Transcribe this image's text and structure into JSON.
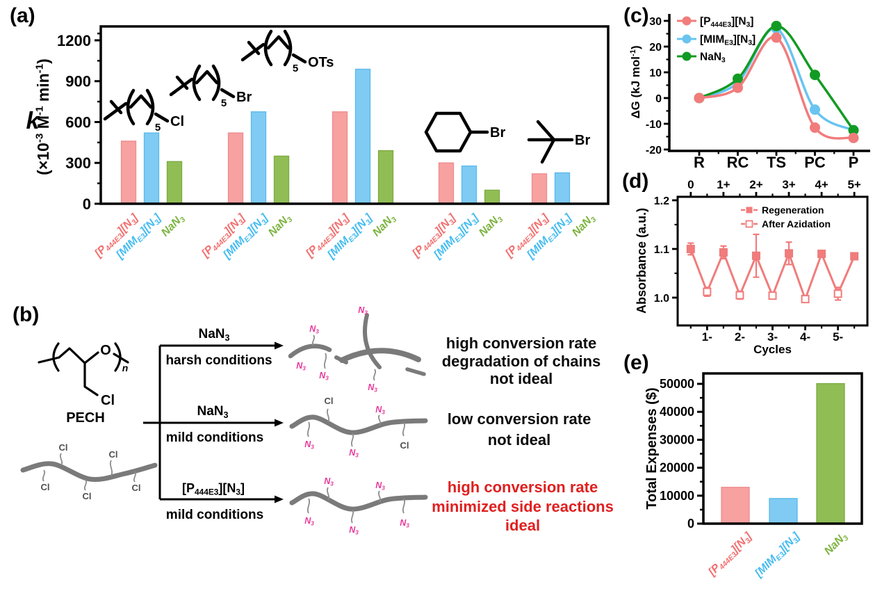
{
  "figure": {
    "panel_labels": {
      "a": "(a)",
      "b": "(b)",
      "c": "(c)",
      "d": "(d)",
      "e": "(e)"
    }
  },
  "colors": {
    "bar_fills": [
      "#F7A1A1",
      "#7FCBF3",
      "#90BE55"
    ],
    "bar_strokes": [
      "#EE8A8A",
      "#58B9EA",
      "#7CAB40"
    ],
    "label_colors": [
      "#F26F6F",
      "#45BCF0",
      "#7CB33F"
    ],
    "line_colors": [
      "#F17C7C",
      "#69C4F0",
      "#129B22"
    ],
    "magenta": "#E8399B",
    "red_text": "#E01F1F",
    "chain": "#7A7A7A",
    "gray_label": "#4F4F4F",
    "black": "#000000"
  },
  "chart_data": [
    {
      "id": "a",
      "type": "bar",
      "ylabel_main": "k",
      "ylabel_units": "(×10^-3^ M^-1^ min^-1^)",
      "yticks": [
        0,
        300,
        600,
        900,
        1200
      ],
      "yticks_minor": [
        150,
        450,
        750,
        1050,
        1250
      ],
      "ylim": [
        0,
        1302
      ],
      "categories": [
        "[P~444E3~][N~3~]",
        "[MIM~E3~][N~3~]",
        "NaN~3~"
      ],
      "ring_subscript": "5",
      "groups": [
        {
          "substrate": "1-chlorohexane",
          "structure": "hexyl",
          "substituent": "Cl",
          "values": [
            460,
            520,
            310
          ]
        },
        {
          "substrate": "1-bromohexane",
          "structure": "hexyl",
          "substituent": "Br",
          "values": [
            520,
            675,
            350
          ]
        },
        {
          "substrate": "hexyl-tosylate",
          "structure": "hexyl",
          "substituent": "OTs",
          "values": [
            675,
            988,
            390
          ]
        },
        {
          "substrate": "bromocyclohexane",
          "structure": "cyclohexyl",
          "substituent": "Br",
          "values": [
            300,
            277,
            100
          ]
        },
        {
          "substrate": "tert-butyl-bromide",
          "structure": "tbutyl",
          "substituent": "Br",
          "values": [
            220,
            227,
            null
          ]
        }
      ]
    },
    {
      "id": "c",
      "type": "line",
      "ylabel": "ΔG (kJ mol^-1^)",
      "categories": [
        "R",
        "RC",
        "TS",
        "PC",
        "P"
      ],
      "yticks": [
        -20,
        -10,
        0,
        10,
        20,
        30
      ],
      "yticks_minor": [
        -15,
        -5,
        5,
        15,
        25
      ],
      "ylim": [
        -20,
        33
      ],
      "series": [
        {
          "name": "[P~444E3~][N~3~]",
          "values": [
            0,
            4,
            23.5,
            -11.5,
            -15.5
          ]
        },
        {
          "name": "[MIM~E3~][N~3~]",
          "values": [
            0,
            6,
            27,
            -4.5,
            -12.5
          ]
        },
        {
          "name": "NaN~3~",
          "values": [
            0,
            7.5,
            28,
            9,
            -12.5
          ]
        }
      ],
      "legend_position": "top-left"
    },
    {
      "id": "d",
      "type": "line-errorbar",
      "ylabel": "Absorbance (a.u.)",
      "xlabel": "Cycles",
      "yticks": [
        1.0,
        1.1,
        1.2
      ],
      "yticks_minor": [
        1.05,
        1.15
      ],
      "top_axis_labels": [
        "0",
        "1+",
        "2+",
        "3+",
        "4+",
        "5+"
      ],
      "bottom_axis_labels": [
        "1-",
        "2-",
        "3-",
        "4-",
        "5-"
      ],
      "series": [
        {
          "name": "Regeneration",
          "marker": "filled-square",
          "x": [
            0.5,
            1.5,
            2.5,
            3.5,
            4.5,
            5.5
          ],
          "values": [
            1.1,
            1.093,
            1.086,
            1.091,
            1.09,
            1.085
          ],
          "errors": [
            0.012,
            0.013,
            0.044,
            0.023,
            0.004,
            0.004
          ]
        },
        {
          "name": "After Azidation",
          "marker": "open-square",
          "x": [
            1,
            2,
            3,
            4,
            5
          ],
          "values": [
            1.012,
            1.005,
            1.004,
            0.997,
            1.008
          ],
          "errors": [
            0.009,
            0.008,
            0.004,
            0.006,
            0.013
          ]
        }
      ],
      "legend_position": "top-right"
    },
    {
      "id": "e",
      "type": "bar",
      "ylabel": "Total Expenses ($)",
      "yticks": [
        0,
        10000,
        20000,
        30000,
        40000,
        50000
      ],
      "yticks_minor": [
        5000,
        15000,
        25000,
        35000,
        45000
      ],
      "ylim": [
        0,
        53700
      ],
      "categories": [
        "[P~444E3~][N~3~]",
        "[MIM~E3~][N~3~]",
        "NaN~3~"
      ],
      "values": [
        13000,
        9000,
        50100
      ]
    }
  ],
  "diagram_b": {
    "polymer_name": "PECH",
    "oxygen": "O",
    "repeat_subscript": "n",
    "chain_labels": {
      "cl": "Cl",
      "n3": "N~3~"
    },
    "routes": [
      {
        "reagent": "NaN~3~",
        "condition": "harsh conditions",
        "outcome_lines": [
          "high conversion rate",
          "degradation of chains",
          "not ideal"
        ],
        "outcome_color": "black"
      },
      {
        "reagent": "NaN~3~",
        "condition": "mild conditions",
        "outcome_lines": [
          "low conversion rate",
          "not ideal"
        ],
        "outcome_color": "black"
      },
      {
        "reagent": "[P~444E3~][N~3~]",
        "condition": "mild conditions",
        "outcome_lines": [
          "high conversion rate",
          "minimized side reactions",
          "ideal"
        ],
        "outcome_color": "red"
      }
    ]
  }
}
